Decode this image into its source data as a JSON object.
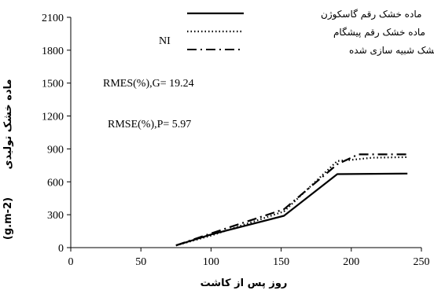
{
  "chart_data": {
    "type": "line",
    "xlabel": "روز پس از کاشت",
    "ylabel": "ماده خشک تولیدی",
    "ylabel_unit": "(g.m-2)",
    "xlim": [
      0,
      250
    ],
    "ylim": [
      0,
      2100
    ],
    "xticks": [
      0,
      50,
      100,
      150,
      200,
      250
    ],
    "yticks": [
      0,
      300,
      600,
      900,
      1200,
      1500,
      1800,
      2100
    ],
    "grid": false,
    "legend_position": "top-right",
    "annotations": [
      "NI",
      "RMES(%),G= 19.24",
      "RMSE(%),P= 5.97"
    ],
    "series": [
      {
        "name": "ماده خشک رقم گاسکوژن",
        "style": "solid",
        "color": "#000000",
        "x": [
          75,
          100,
          152,
          190,
          240
        ],
        "y": [
          20,
          120,
          290,
          670,
          675
        ]
      },
      {
        "name": "ماده خشک رقم پیشگام",
        "style": "dotted",
        "color": "#000000",
        "x": [
          75,
          100,
          152,
          190,
          200,
          215,
          240
        ],
        "y": [
          20,
          110,
          330,
          790,
          800,
          820,
          825
        ]
      },
      {
        "name": "ماده خشک شبیه سازی شده",
        "style": "dashdot",
        "color": "#000000",
        "x": [
          75,
          100,
          152,
          190,
          205,
          240
        ],
        "y": [
          20,
          130,
          350,
          760,
          850,
          850
        ]
      }
    ]
  }
}
